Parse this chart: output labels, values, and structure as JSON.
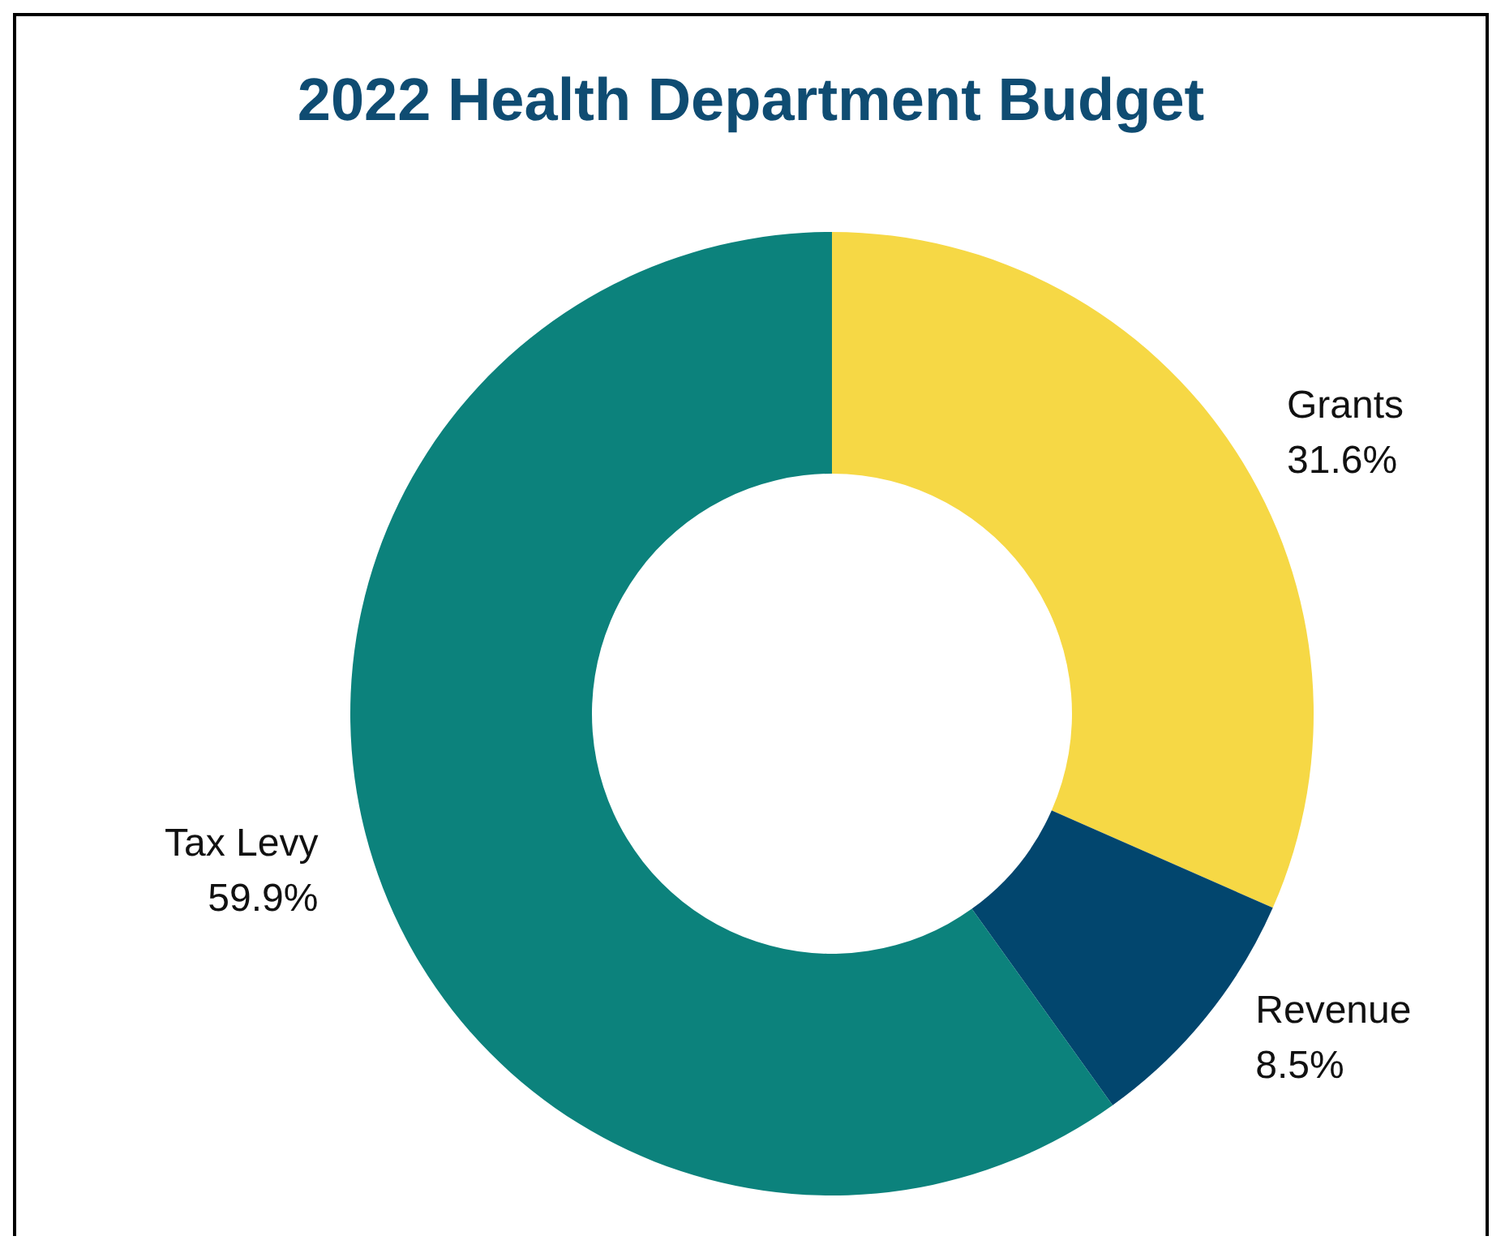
{
  "chart_data": {
    "type": "donut",
    "title": "2022 Health Department Budget",
    "categories": [
      "Grants",
      "Revenue",
      "Tax Levy"
    ],
    "values": [
      31.6,
      8.5,
      59.9
    ],
    "value_labels": [
      "31.6%",
      "8.5%",
      "59.9%"
    ],
    "colors": [
      "#f6d845",
      "#02466e",
      "#0c827c"
    ],
    "legend": false
  }
}
